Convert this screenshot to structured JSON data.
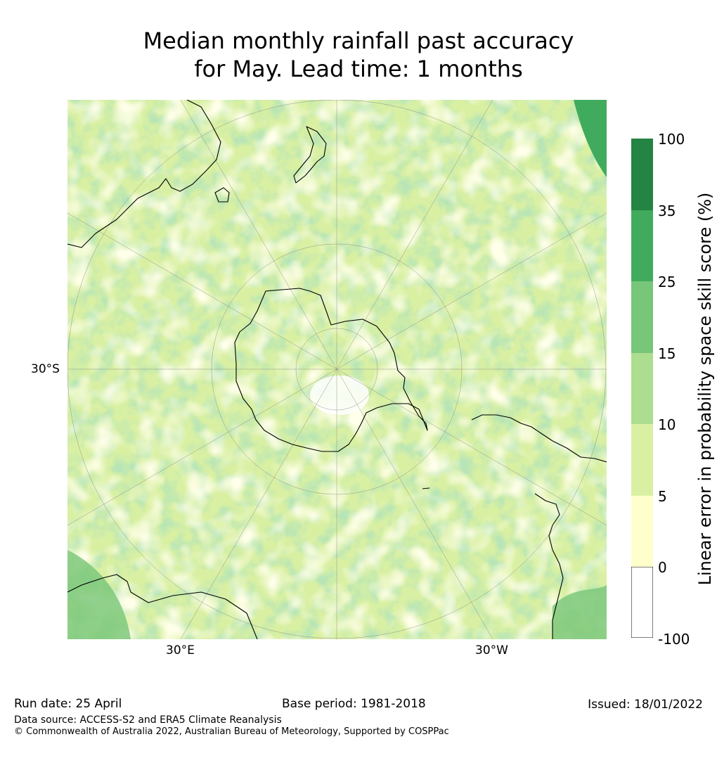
{
  "title": {
    "line1": "Median monthly rainfall past accuracy",
    "line2": "for May. Lead time: 1 months"
  },
  "map": {
    "projection": "south-polar stereographic",
    "lat_label": "30°S",
    "lon_labels": [
      "30°E",
      "30°W"
    ],
    "coastline_color": "#000000",
    "graticule_color": "#7f7f7f"
  },
  "colorbar": {
    "label": "Linear error in probability space skill score (%)",
    "ticks": [
      "100",
      "35",
      "25",
      "15",
      "10",
      "5",
      "0",
      "-100"
    ],
    "classes": [
      {
        "range": "-100 to 0",
        "color": "#ffffff"
      },
      {
        "range": "0 to 5",
        "color": "#ffffcc"
      },
      {
        "range": "5 to 10",
        "color": "#d9f0a3"
      },
      {
        "range": "10 to 15",
        "color": "#addd8e"
      },
      {
        "range": "15 to 25",
        "color": "#78c679"
      },
      {
        "range": "25 to 35",
        "color": "#41ab5d"
      },
      {
        "range": "35 to 100",
        "color": "#238443"
      }
    ]
  },
  "footer": {
    "run_date": "Run date: 25 April",
    "base_period": "Base period: 1981-2018",
    "issued": "Issued: 18/01/2022",
    "data_source": "Data source: ACCESS-S2 and ERA5 Climate Reanalysis",
    "copyright": "© Commonwealth of Australia 2022, Australian Bureau of Meteorology, Supported by COSPPac"
  }
}
